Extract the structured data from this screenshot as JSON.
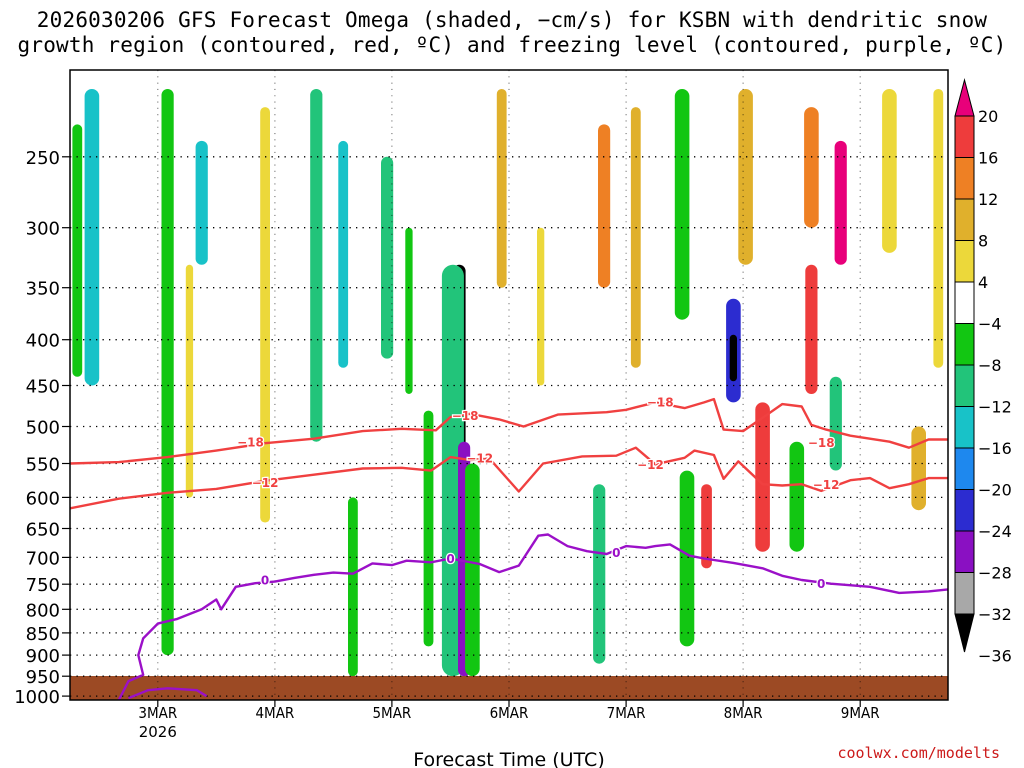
{
  "title_line1": "2026030206 GFS Forecast Omega (shaded, −cm/s) for KSBN with dendritic snow",
  "title_line2": "growth region (contoured, red, ºC) and freezing level (contoured, purple, ºC)",
  "credit": "coolwx.com/modelts",
  "chart_data": {
    "type": "heatmap",
    "title": "2026030206 GFS Forecast Omega (shaded, −cm/s) for KSBN with dendritic snow growth region (contoured, red, ºC) and freezing level (contoured, purple, ºC)",
    "xlabel": "Forecast Time (UTC)",
    "ylabel": "",
    "x_unit": "forecast hours from 2026-03-02 06 UTC",
    "x_range": [
      0,
      180
    ],
    "y_scale": "log-pressure (hPa), inverted",
    "y_range": [
      1010,
      200
    ],
    "x_ticks": [
      {
        "hour": 18,
        "label": "3MAR",
        "sublabel": "2026"
      },
      {
        "hour": 42,
        "label": "4MAR",
        "sublabel": ""
      },
      {
        "hour": 66,
        "label": "5MAR",
        "sublabel": ""
      },
      {
        "hour": 90,
        "label": "6MAR",
        "sublabel": ""
      },
      {
        "hour": 114,
        "label": "7MAR",
        "sublabel": ""
      },
      {
        "hour": 138,
        "label": "8MAR",
        "sublabel": ""
      },
      {
        "hour": 162,
        "label": "9MAR",
        "sublabel": ""
      }
    ],
    "y_ticks": [
      250,
      300,
      350,
      400,
      450,
      500,
      550,
      600,
      650,
      700,
      750,
      800,
      850,
      900,
      950,
      1000
    ],
    "grid": true,
    "colorbar": {
      "labels": [
        "20",
        "16",
        "12",
        "8",
        "4",
        "−4",
        "−8",
        "−12",
        "−16",
        "−20",
        "−24",
        "−28",
        "−32",
        "−36"
      ],
      "colors": [
        "#e8007a",
        "#ee3c3c",
        "#ee8024",
        "#e0b02c",
        "#ecd83a",
        "#ffffff",
        "#12c612",
        "#22c47a",
        "#18c2c8",
        "#1e88ee",
        "#2c2cd0",
        "#8a10c2",
        "#a8a8a8",
        "#000000"
      ]
    },
    "series": [
      {
        "color": "#f04040",
        "label": "−18",
        "points": [
          [
            0,
            550
          ],
          [
            10,
            548
          ],
          [
            20,
            541
          ],
          [
            30,
            532
          ],
          [
            40,
            522
          ],
          [
            50,
            516
          ],
          [
            60,
            506
          ],
          [
            68,
            503
          ],
          [
            75,
            505
          ],
          [
            78,
            488
          ],
          [
            82,
            484
          ],
          [
            88,
            491
          ],
          [
            93,
            500
          ],
          [
            100,
            485
          ],
          [
            110,
            482
          ],
          [
            114,
            479
          ],
          [
            120,
            470
          ],
          [
            126,
            477
          ],
          [
            130,
            470
          ],
          [
            132,
            466
          ],
          [
            134,
            504
          ],
          [
            138,
            506
          ],
          [
            142,
            489
          ],
          [
            146,
            472
          ],
          [
            150,
            475
          ],
          [
            152,
            498
          ],
          [
            155,
            504
          ],
          [
            160,
            512
          ],
          [
            168,
            520
          ],
          [
            172,
            528
          ],
          [
            176,
            517
          ],
          [
            180,
            517
          ]
        ]
      },
      {
        "color": "#f04040",
        "label": "−12",
        "points": [
          [
            0,
            617
          ],
          [
            10,
            602
          ],
          [
            20,
            593
          ],
          [
            30,
            587
          ],
          [
            40,
            575
          ],
          [
            50,
            566
          ],
          [
            60,
            557
          ],
          [
            68,
            556
          ],
          [
            74,
            560
          ],
          [
            78,
            541
          ],
          [
            82,
            545
          ],
          [
            86,
            543
          ],
          [
            92,
            591
          ],
          [
            97,
            550
          ],
          [
            105,
            540
          ],
          [
            112,
            539
          ],
          [
            116,
            528
          ],
          [
            120,
            551
          ],
          [
            126,
            542
          ],
          [
            128,
            532
          ],
          [
            132,
            538
          ],
          [
            134,
            572
          ],
          [
            137,
            547
          ],
          [
            142,
            580
          ],
          [
            146,
            582
          ],
          [
            150,
            580
          ],
          [
            154,
            590
          ],
          [
            160,
            574
          ],
          [
            164,
            571
          ],
          [
            168,
            586
          ],
          [
            172,
            580
          ],
          [
            176,
            571
          ],
          [
            180,
            571
          ]
        ]
      },
      {
        "color": "#9b10c8",
        "label": "0",
        "points": [
          [
            10,
            1010
          ],
          [
            12,
            962
          ],
          [
            15,
            947
          ],
          [
            14,
            900
          ],
          [
            15,
            862
          ],
          [
            18,
            830
          ],
          [
            22,
            820
          ],
          [
            27,
            800
          ],
          [
            30,
            780
          ],
          [
            31,
            800
          ],
          [
            34,
            755
          ],
          [
            38,
            748
          ],
          [
            42,
            745
          ],
          [
            46,
            738
          ],
          [
            50,
            732
          ],
          [
            54,
            728
          ],
          [
            58,
            730
          ],
          [
            62,
            711
          ],
          [
            66,
            714
          ],
          [
            69,
            706
          ],
          [
            74,
            709
          ],
          [
            78,
            702
          ],
          [
            84,
            712
          ],
          [
            88,
            727
          ],
          [
            92,
            715
          ],
          [
            96,
            662
          ],
          [
            98,
            660
          ],
          [
            102,
            680
          ],
          [
            106,
            689
          ],
          [
            110,
            694
          ],
          [
            114,
            680
          ],
          [
            118,
            683
          ],
          [
            120,
            680
          ],
          [
            123,
            677
          ],
          [
            127,
            697
          ],
          [
            130,
            702
          ],
          [
            136,
            710
          ],
          [
            142,
            720
          ],
          [
            146,
            734
          ],
          [
            150,
            742
          ],
          [
            156,
            749
          ],
          [
            164,
            755
          ],
          [
            170,
            767
          ],
          [
            176,
            764
          ],
          [
            180,
            760
          ]
        ]
      },
      {
        "color": "#9b10c8",
        "label": "",
        "points": [
          [
            12,
            1005
          ],
          [
            16,
            985
          ],
          [
            20,
            980
          ],
          [
            26,
            985
          ],
          [
            28,
            1000
          ]
        ]
      }
    ],
    "contour_labels": [
      {
        "text": "−18",
        "color": "#f04040",
        "hour": 37,
        "hPa": 521
      },
      {
        "text": "−18",
        "color": "#f04040",
        "hour": 81,
        "hPa": 487
      },
      {
        "text": "−18",
        "color": "#f04040",
        "hour": 121,
        "hPa": 470
      },
      {
        "text": "−18",
        "color": "#f04040",
        "hour": 154,
        "hPa": 522
      },
      {
        "text": "−12",
        "color": "#f04040",
        "hour": 40,
        "hPa": 578
      },
      {
        "text": "−12",
        "color": "#f04040",
        "hour": 84,
        "hPa": 543
      },
      {
        "text": "−12",
        "color": "#f04040",
        "hour": 119,
        "hPa": 552
      },
      {
        "text": "−12",
        "color": "#f04040",
        "hour": 155,
        "hPa": 581
      },
      {
        "text": "0",
        "color": "#9b10c8",
        "hour": 40,
        "hPa": 743
      },
      {
        "text": "0",
        "color": "#9b10c8",
        "hour": 78,
        "hPa": 703
      },
      {
        "text": "0",
        "color": "#9b10c8",
        "hour": 112,
        "hPa": 692
      },
      {
        "text": "0",
        "color": "#9b10c8",
        "hour": 154,
        "hPa": 750
      }
    ],
    "omega_features": [
      {
        "hour": 4.5,
        "p_top": 210,
        "p_bot": 450,
        "value": -14,
        "width_h": 3
      },
      {
        "hour": 1.5,
        "p_top": 230,
        "p_bot": 440,
        "value": -8,
        "width_h": 2
      },
      {
        "hour": 20,
        "p_top": 210,
        "p_bot": 900,
        "value": -8,
        "width_h": 2.5
      },
      {
        "hour": 27,
        "p_top": 240,
        "p_bot": 330,
        "value": -14,
        "width_h": 2.5
      },
      {
        "hour": 24.5,
        "p_top": 330,
        "p_bot": 600,
        "value": 4,
        "width_h": 1.5
      },
      {
        "hour": 40,
        "p_top": 220,
        "p_bot": 640,
        "value": 4,
        "width_h": 2
      },
      {
        "hour": 50.5,
        "p_top": 210,
        "p_bot": 520,
        "value": -12,
        "width_h": 2.5
      },
      {
        "hour": 56,
        "p_top": 240,
        "p_bot": 430,
        "value": -14,
        "width_h": 2
      },
      {
        "hour": 65,
        "p_top": 250,
        "p_bot": 420,
        "value": -12,
        "width_h": 2.5
      },
      {
        "hour": 58,
        "p_top": 600,
        "p_bot": 950,
        "value": -8,
        "width_h": 2
      },
      {
        "hour": 79.8,
        "p_top": 330,
        "p_bot": 870,
        "value": -36,
        "width_h": 2.6
      },
      {
        "hour": 78.5,
        "p_top": 330,
        "p_bot": 950,
        "value": -12,
        "width_h": 4.5
      },
      {
        "hour": 80.8,
        "p_top": 520,
        "p_bot": 950,
        "value": -28,
        "width_h": 2.5
      },
      {
        "hour": 82.5,
        "p_top": 550,
        "p_bot": 950,
        "value": -8,
        "width_h": 3
      },
      {
        "hour": 73.5,
        "p_top": 480,
        "p_bot": 880,
        "value": -8,
        "width_h": 2
      },
      {
        "hour": 69.5,
        "p_top": 300,
        "p_bot": 460,
        "value": -8,
        "width_h": 1.5
      },
      {
        "hour": 88.5,
        "p_top": 210,
        "p_bot": 350,
        "value": 8,
        "width_h": 2
      },
      {
        "hour": 96.5,
        "p_top": 300,
        "p_bot": 450,
        "value": 4,
        "width_h": 1.5
      },
      {
        "hour": 109.5,
        "p_top": 230,
        "p_bot": 350,
        "value": 12,
        "width_h": 2.5
      },
      {
        "hour": 108.5,
        "p_top": 580,
        "p_bot": 920,
        "value": -12,
        "width_h": 2.5
      },
      {
        "hour": 116,
        "p_top": 220,
        "p_bot": 430,
        "value": 8,
        "width_h": 2
      },
      {
        "hour": 125.5,
        "p_top": 210,
        "p_bot": 380,
        "value": -8,
        "width_h": 3
      },
      {
        "hour": 126.5,
        "p_top": 560,
        "p_bot": 880,
        "value": -8,
        "width_h": 3
      },
      {
        "hour": 130.5,
        "p_top": 580,
        "p_bot": 720,
        "value": 16,
        "width_h": 2.2
      },
      {
        "hour": 136,
        "p_top": 360,
        "p_bot": 470,
        "value": -24,
        "width_h": 3
      },
      {
        "hour": 136,
        "p_top": 395,
        "p_bot": 445,
        "value": -36,
        "width_h": 1.5
      },
      {
        "hour": 138.5,
        "p_top": 210,
        "p_bot": 330,
        "value": 8,
        "width_h": 3
      },
      {
        "hour": 142,
        "p_top": 470,
        "p_bot": 690,
        "value": 16,
        "width_h": 3
      },
      {
        "hour": 149,
        "p_top": 520,
        "p_bot": 690,
        "value": -8,
        "width_h": 3
      },
      {
        "hour": 152,
        "p_top": 220,
        "p_bot": 300,
        "value": 12,
        "width_h": 3
      },
      {
        "hour": 152,
        "p_top": 330,
        "p_bot": 460,
        "value": 16,
        "width_h": 2.5
      },
      {
        "hour": 158,
        "p_top": 240,
        "p_bot": 330,
        "value": 20,
        "width_h": 2.5
      },
      {
        "hour": 157,
        "p_top": 440,
        "p_bot": 560,
        "value": -12,
        "width_h": 2.5
      },
      {
        "hour": 168,
        "p_top": 210,
        "p_bot": 320,
        "value": 4,
        "width_h": 3
      },
      {
        "hour": 174,
        "p_top": 500,
        "p_bot": 620,
        "value": 8,
        "width_h": 3
      },
      {
        "hour": 178,
        "p_top": 210,
        "p_bot": 430,
        "value": 4,
        "width_h": 2
      }
    ]
  }
}
